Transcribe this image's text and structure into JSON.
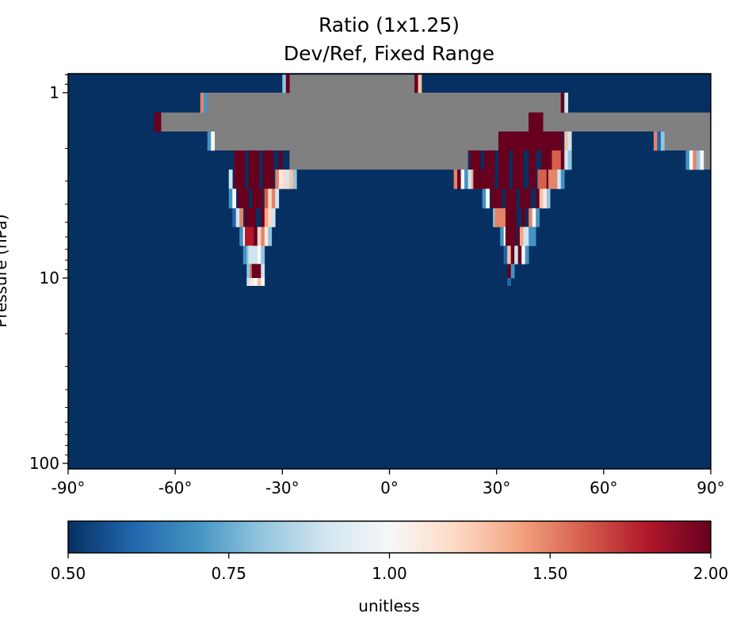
{
  "chart_data": {
    "type": "heatmap",
    "title": "Ratio (1x1.25)",
    "subtitle": "Dev/Ref, Fixed Range",
    "xlabel": "",
    "ylabel": "Pressure (hPa)",
    "x_range": [
      -90,
      90
    ],
    "y_range": [
      0.8,
      100
    ],
    "y_scale": "log",
    "y_inverted": true,
    "x_ticks": [
      {
        "value": -90,
        "label": "-90°"
      },
      {
        "value": -60,
        "label": "-60°"
      },
      {
        "value": -30,
        "label": "-30°"
      },
      {
        "value": 0,
        "label": "0°"
      },
      {
        "value": 30,
        "label": "30°"
      },
      {
        "value": 60,
        "label": "60°"
      },
      {
        "value": 90,
        "label": "90°"
      }
    ],
    "y_ticks": [
      {
        "value": 1,
        "label": "1"
      },
      {
        "value": 10,
        "label": "10"
      },
      {
        "value": 100,
        "label": "100"
      }
    ],
    "background_value": 0.5,
    "nan_color": "#808080",
    "nan_regions": [
      {
        "p_top": 0.8,
        "p_bot": 1.0,
        "lat_from": -28,
        "lat_to": 7
      },
      {
        "p_top": 1.0,
        "p_bot": 1.28,
        "lat_from": -51,
        "lat_to": 48
      },
      {
        "p_top": 1.28,
        "p_bot": 1.62,
        "lat_from": -64,
        "lat_to": 39
      },
      {
        "p_top": 1.28,
        "p_bot": 1.62,
        "lat_from": 43,
        "lat_to": 90
      },
      {
        "p_top": 1.62,
        "p_bot": 2.05,
        "lat_from": -49,
        "lat_to": 31
      },
      {
        "p_top": 1.62,
        "p_bot": 2.05,
        "lat_from": 77,
        "lat_to": 90
      },
      {
        "p_top": 2.05,
        "p_bot": 2.6,
        "lat_from": -28,
        "lat_to": 22
      },
      {
        "p_top": 2.05,
        "p_bot": 2.6,
        "lat_from": 88,
        "lat_to": 90
      }
    ],
    "value_cells": [
      {
        "p_top": 0.8,
        "p_bot": 1.0,
        "lat": -29.5,
        "value": 0.8
      },
      {
        "p_top": 0.8,
        "p_bot": 1.0,
        "lat": -28.5,
        "value": 2.0
      },
      {
        "p_top": 0.8,
        "p_bot": 1.0,
        "lat": 7.5,
        "value": 2.0
      },
      {
        "p_top": 0.8,
        "p_bot": 1.0,
        "lat": 8.5,
        "value": 1.3
      },
      {
        "p_top": 1.0,
        "p_bot": 1.28,
        "lat": -52.5,
        "value": 1.5
      },
      {
        "p_top": 1.0,
        "p_bot": 1.28,
        "lat": -51.5,
        "value": 0.7
      },
      {
        "p_top": 1.0,
        "p_bot": 1.28,
        "lat": 48.5,
        "value": 2.0
      },
      {
        "p_top": 1.0,
        "p_bot": 1.28,
        "lat": 49.5,
        "value": 0.9
      },
      {
        "p_top": 1.28,
        "p_bot": 1.62,
        "lat": -65,
        "value": 2.0
      },
      {
        "p_top": 1.28,
        "p_bot": 1.62,
        "lat": 40,
        "value": 2.0
      },
      {
        "p_top": 1.28,
        "p_bot": 1.62,
        "lat": 42,
        "value": 2.0
      },
      {
        "p_top": 1.62,
        "p_bot": 2.05,
        "lat": -50.5,
        "value": 0.7
      },
      {
        "p_top": 1.62,
        "p_bot": 2.05,
        "lat": -49.5,
        "value": 1.0
      },
      {
        "p_top": 1.62,
        "p_bot": 2.05,
        "lat": 32,
        "value": 2.0
      },
      {
        "p_top": 1.62,
        "p_bot": 2.05,
        "lat": 35,
        "value": 2.0
      },
      {
        "p_top": 1.62,
        "p_bot": 2.05,
        "lat": 38,
        "value": 2.0
      },
      {
        "p_top": 1.62,
        "p_bot": 2.05,
        "lat": 41,
        "value": 2.0
      },
      {
        "p_top": 1.62,
        "p_bot": 2.05,
        "lat": 44,
        "value": 2.0
      },
      {
        "p_top": 1.62,
        "p_bot": 2.05,
        "lat": 47,
        "value": 2.0
      },
      {
        "p_top": 1.62,
        "p_bot": 2.05,
        "lat": 49.5,
        "value": 1.3
      },
      {
        "p_top": 1.62,
        "p_bot": 2.05,
        "lat": 50.5,
        "value": 0.9
      },
      {
        "p_top": 1.62,
        "p_bot": 2.05,
        "lat": 74.5,
        "value": 1.5
      },
      {
        "p_top": 1.62,
        "p_bot": 2.05,
        "lat": 75.5,
        "value": 0.6
      },
      {
        "p_top": 1.62,
        "p_bot": 2.05,
        "lat": 76.5,
        "value": 0.8
      },
      {
        "p_top": 2.05,
        "p_bot": 2.6,
        "lat": -42,
        "value": 2.0
      },
      {
        "p_top": 2.05,
        "p_bot": 2.6,
        "lat": -38,
        "value": 2.0
      },
      {
        "p_top": 2.05,
        "p_bot": 2.6,
        "lat": -34,
        "value": 2.0
      },
      {
        "p_top": 2.05,
        "p_bot": 2.6,
        "lat": -30.5,
        "value": 2.0
      },
      {
        "p_top": 2.05,
        "p_bot": 2.6,
        "lat": 24,
        "value": 2.0
      },
      {
        "p_top": 2.05,
        "p_bot": 2.6,
        "lat": 28,
        "value": 2.0
      },
      {
        "p_top": 2.05,
        "p_bot": 2.6,
        "lat": 32,
        "value": 2.0
      },
      {
        "p_top": 2.05,
        "p_bot": 2.6,
        "lat": 36,
        "value": 2.0
      },
      {
        "p_top": 2.05,
        "p_bot": 2.6,
        "lat": 40,
        "value": 2.0
      },
      {
        "p_top": 2.05,
        "p_bot": 2.6,
        "lat": 44,
        "value": 2.0
      },
      {
        "p_top": 2.05,
        "p_bot": 2.6,
        "lat": 47,
        "value": 1.6
      },
      {
        "p_top": 2.05,
        "p_bot": 2.6,
        "lat": 48.5,
        "value": 2.0
      },
      {
        "p_top": 2.05,
        "p_bot": 2.6,
        "lat": 49.5,
        "value": 0.9
      },
      {
        "p_top": 2.05,
        "p_bot": 2.6,
        "lat": 50.5,
        "value": 0.8
      },
      {
        "p_top": 2.05,
        "p_bot": 2.6,
        "lat": 83.5,
        "value": 0.7
      },
      {
        "p_top": 2.05,
        "p_bot": 2.6,
        "lat": 84.5,
        "value": 1.0
      },
      {
        "p_top": 2.05,
        "p_bot": 2.6,
        "lat": 85.5,
        "value": 1.5
      },
      {
        "p_top": 2.05,
        "p_bot": 2.6,
        "lat": 86.5,
        "value": 0.8
      },
      {
        "p_top": 2.05,
        "p_bot": 2.6,
        "lat": 87.5,
        "value": 1.0
      },
      {
        "p_top": 2.6,
        "p_bot": 3.3,
        "lat": -44.5,
        "value": 0.9
      },
      {
        "p_top": 2.6,
        "p_bot": 3.3,
        "lat": -42,
        "value": 2.0
      },
      {
        "p_top": 2.6,
        "p_bot": 3.3,
        "lat": -38,
        "value": 2.0
      },
      {
        "p_top": 2.6,
        "p_bot": 3.3,
        "lat": -34,
        "value": 2.0
      },
      {
        "p_top": 2.6,
        "p_bot": 3.3,
        "lat": -31.5,
        "value": 1.5
      },
      {
        "p_top": 2.6,
        "p_bot": 3.3,
        "lat": -30.5,
        "value": 1.1
      },
      {
        "p_top": 2.6,
        "p_bot": 3.3,
        "lat": -29.5,
        "value": 1.2
      },
      {
        "p_top": 2.6,
        "p_bot": 3.3,
        "lat": -28.5,
        "value": 0.9
      },
      {
        "p_top": 2.6,
        "p_bot": 3.3,
        "lat": -27.5,
        "value": 1.3
      },
      {
        "p_top": 2.6,
        "p_bot": 3.3,
        "lat": -26.5,
        "value": 0.8
      },
      {
        "p_top": 2.6,
        "p_bot": 3.3,
        "lat": 18.5,
        "value": 1.5
      },
      {
        "p_top": 2.6,
        "p_bot": 3.3,
        "lat": 19.5,
        "value": 2.0
      },
      {
        "p_top": 2.6,
        "p_bot": 3.3,
        "lat": 20.5,
        "value": 1.0
      },
      {
        "p_top": 2.6,
        "p_bot": 3.3,
        "lat": 21.5,
        "value": 0.7
      },
      {
        "p_top": 2.6,
        "p_bot": 3.3,
        "lat": 22.5,
        "value": 0.9
      },
      {
        "p_top": 2.6,
        "p_bot": 3.3,
        "lat": 23.5,
        "value": 1.4
      },
      {
        "p_top": 2.6,
        "p_bot": 3.3,
        "lat": 25,
        "value": 2.0
      },
      {
        "p_top": 2.6,
        "p_bot": 3.3,
        "lat": 28,
        "value": 2.0
      },
      {
        "p_top": 2.6,
        "p_bot": 3.3,
        "lat": 32,
        "value": 2.0
      },
      {
        "p_top": 2.6,
        "p_bot": 3.3,
        "lat": 36,
        "value": 2.0
      },
      {
        "p_top": 2.6,
        "p_bot": 3.3,
        "lat": 40,
        "value": 2.0
      },
      {
        "p_top": 2.6,
        "p_bot": 3.3,
        "lat": 43,
        "value": 1.6
      },
      {
        "p_top": 2.6,
        "p_bot": 3.3,
        "lat": 44.5,
        "value": 2.0
      },
      {
        "p_top": 2.6,
        "p_bot": 3.3,
        "lat": 46,
        "value": 1.5
      },
      {
        "p_top": 2.6,
        "p_bot": 3.3,
        "lat": 47.5,
        "value": 0.9
      },
      {
        "p_top": 2.6,
        "p_bot": 3.3,
        "lat": 48.5,
        "value": 0.7
      },
      {
        "p_top": 3.3,
        "p_bot": 4.2,
        "lat": -44.5,
        "value": 0.7
      },
      {
        "p_top": 3.3,
        "p_bot": 4.2,
        "lat": -43.5,
        "value": 1.0
      },
      {
        "p_top": 3.3,
        "p_bot": 4.2,
        "lat": -41,
        "value": 2.0
      },
      {
        "p_top": 3.3,
        "p_bot": 4.2,
        "lat": -37,
        "value": 2.0
      },
      {
        "p_top": 3.3,
        "p_bot": 4.2,
        "lat": -34.5,
        "value": 1.6
      },
      {
        "p_top": 3.3,
        "p_bot": 4.2,
        "lat": -33.5,
        "value": 1.2
      },
      {
        "p_top": 3.3,
        "p_bot": 4.2,
        "lat": -32.5,
        "value": 1.5
      },
      {
        "p_top": 3.3,
        "p_bot": 4.2,
        "lat": -31.5,
        "value": 0.9
      },
      {
        "p_top": 3.3,
        "p_bot": 4.2,
        "lat": 26.5,
        "value": 0.7
      },
      {
        "p_top": 3.3,
        "p_bot": 4.2,
        "lat": 27.5,
        "value": 1.0
      },
      {
        "p_top": 3.3,
        "p_bot": 4.2,
        "lat": 30,
        "value": 2.0
      },
      {
        "p_top": 3.3,
        "p_bot": 4.2,
        "lat": 34,
        "value": 2.0
      },
      {
        "p_top": 3.3,
        "p_bot": 4.2,
        "lat": 38,
        "value": 2.0
      },
      {
        "p_top": 3.3,
        "p_bot": 4.2,
        "lat": 41.5,
        "value": 2.0
      },
      {
        "p_top": 3.3,
        "p_bot": 4.2,
        "lat": 42.5,
        "value": 1.3
      },
      {
        "p_top": 3.3,
        "p_bot": 4.2,
        "lat": 43.5,
        "value": 1.1
      },
      {
        "p_top": 3.3,
        "p_bot": 4.2,
        "lat": 44.5,
        "value": 0.8
      },
      {
        "p_top": 4.2,
        "p_bot": 5.3,
        "lat": -43.5,
        "value": 0.6
      },
      {
        "p_top": 4.2,
        "p_bot": 5.3,
        "lat": -42.5,
        "value": 0.9
      },
      {
        "p_top": 4.2,
        "p_bot": 5.3,
        "lat": -41.5,
        "value": 1.5
      },
      {
        "p_top": 4.2,
        "p_bot": 5.3,
        "lat": -39,
        "value": 2.0
      },
      {
        "p_top": 4.2,
        "p_bot": 5.3,
        "lat": -35.5,
        "value": 2.0
      },
      {
        "p_top": 4.2,
        "p_bot": 5.3,
        "lat": -34.5,
        "value": 1.4
      },
      {
        "p_top": 4.2,
        "p_bot": 5.3,
        "lat": -33.5,
        "value": 1.2
      },
      {
        "p_top": 4.2,
        "p_bot": 5.3,
        "lat": -32.5,
        "value": 0.9
      },
      {
        "p_top": 4.2,
        "p_bot": 5.3,
        "lat": 29.5,
        "value": 0.8
      },
      {
        "p_top": 4.2,
        "p_bot": 5.3,
        "lat": 31,
        "value": 1.5
      },
      {
        "p_top": 4.2,
        "p_bot": 5.3,
        "lat": 34,
        "value": 2.0
      },
      {
        "p_top": 4.2,
        "p_bot": 5.3,
        "lat": 37.5,
        "value": 2.0
      },
      {
        "p_top": 4.2,
        "p_bot": 5.3,
        "lat": 39.5,
        "value": 1.5
      },
      {
        "p_top": 4.2,
        "p_bot": 5.3,
        "lat": 40.5,
        "value": 1.0
      },
      {
        "p_top": 4.2,
        "p_bot": 5.3,
        "lat": 41.5,
        "value": 0.7
      },
      {
        "p_top": 5.3,
        "p_bot": 6.7,
        "lat": -41.5,
        "value": 0.7
      },
      {
        "p_top": 5.3,
        "p_bot": 6.7,
        "lat": -40.5,
        "value": 1.0
      },
      {
        "p_top": 5.3,
        "p_bot": 6.7,
        "lat": -39,
        "value": 1.8
      },
      {
        "p_top": 5.3,
        "p_bot": 6.7,
        "lat": -37.5,
        "value": 2.0
      },
      {
        "p_top": 5.3,
        "p_bot": 6.7,
        "lat": -36.5,
        "value": 1.2
      },
      {
        "p_top": 5.3,
        "p_bot": 6.7,
        "lat": -35.5,
        "value": 1.5
      },
      {
        "p_top": 5.3,
        "p_bot": 6.7,
        "lat": -34.5,
        "value": 1.1
      },
      {
        "p_top": 5.3,
        "p_bot": 6.7,
        "lat": -33.5,
        "value": 0.8
      },
      {
        "p_top": 5.3,
        "p_bot": 6.7,
        "lat": 31.5,
        "value": 0.7
      },
      {
        "p_top": 5.3,
        "p_bot": 6.7,
        "lat": 32.5,
        "value": 1.0
      },
      {
        "p_top": 5.3,
        "p_bot": 6.7,
        "lat": 34,
        "value": 2.0
      },
      {
        "p_top": 5.3,
        "p_bot": 6.7,
        "lat": 36.5,
        "value": 2.0
      },
      {
        "p_top": 5.3,
        "p_bot": 6.7,
        "lat": 38,
        "value": 1.4
      },
      {
        "p_top": 5.3,
        "p_bot": 6.7,
        "lat": 39,
        "value": 0.9
      },
      {
        "p_top": 5.3,
        "p_bot": 6.7,
        "lat": 40,
        "value": 0.7
      },
      {
        "p_top": 6.7,
        "p_bot": 8.4,
        "lat": -40.5,
        "value": 0.7
      },
      {
        "p_top": 6.7,
        "p_bot": 8.4,
        "lat": -39.5,
        "value": 0.8
      },
      {
        "p_top": 6.7,
        "p_bot": 8.4,
        "lat": -38,
        "value": 0.9
      },
      {
        "p_top": 6.7,
        "p_bot": 8.4,
        "lat": -36.5,
        "value": 1.0
      },
      {
        "p_top": 6.7,
        "p_bot": 8.4,
        "lat": -35.5,
        "value": 0.8
      },
      {
        "p_top": 6.7,
        "p_bot": 8.4,
        "lat": 32.5,
        "value": 0.6
      },
      {
        "p_top": 6.7,
        "p_bot": 8.4,
        "lat": 33.5,
        "value": 1.3
      },
      {
        "p_top": 6.7,
        "p_bot": 8.4,
        "lat": 34.5,
        "value": 2.0
      },
      {
        "p_top": 6.7,
        "p_bot": 8.4,
        "lat": 35.5,
        "value": 0.9
      },
      {
        "p_top": 6.7,
        "p_bot": 8.4,
        "lat": 36.5,
        "value": 2.0
      },
      {
        "p_top": 6.7,
        "p_bot": 8.4,
        "lat": 37.5,
        "value": 1.0
      },
      {
        "p_top": 6.7,
        "p_bot": 8.4,
        "lat": 38.5,
        "value": 0.7
      },
      {
        "p_top": 8.4,
        "p_bot": 10.0,
        "lat": -39.5,
        "value": 0.8
      },
      {
        "p_top": 8.4,
        "p_bot": 10.0,
        "lat": -38.5,
        "value": 1.6
      },
      {
        "p_top": 8.4,
        "p_bot": 10.0,
        "lat": -37,
        "value": 2.0
      },
      {
        "p_top": 8.4,
        "p_bot": 10.0,
        "lat": -35.5,
        "value": 0.9
      },
      {
        "p_top": 8.4,
        "p_bot": 10.0,
        "lat": 33.5,
        "value": 2.0
      },
      {
        "p_top": 8.4,
        "p_bot": 10.0,
        "lat": 34.5,
        "value": 0.7
      },
      {
        "p_top": 10.0,
        "p_bot": 11.0,
        "lat": -39.5,
        "value": 0.9
      },
      {
        "p_top": 10.0,
        "p_bot": 11.0,
        "lat": -38.5,
        "value": 1.1
      },
      {
        "p_top": 10.0,
        "p_bot": 11.0,
        "lat": -37.5,
        "value": 1.0
      },
      {
        "p_top": 10.0,
        "p_bot": 11.0,
        "lat": -36.5,
        "value": 1.3
      },
      {
        "p_top": 10.0,
        "p_bot": 11.0,
        "lat": -35.5,
        "value": 1.0
      },
      {
        "p_top": 10.0,
        "p_bot": 11.0,
        "lat": 33.5,
        "value": 0.6
      }
    ],
    "grid": false
  },
  "colorbar": {
    "min": 0.5,
    "max": 2.0,
    "ticks": [
      {
        "value": 0.5,
        "label": "0.50"
      },
      {
        "value": 0.75,
        "label": "0.75"
      },
      {
        "value": 1.0,
        "label": "1.00"
      },
      {
        "value": 1.5,
        "label": "1.50"
      },
      {
        "value": 2.0,
        "label": "2.00"
      }
    ],
    "label": "unitless",
    "colormap": "RdBu_r",
    "stops": [
      "#053061",
      "#2166ac",
      "#4393c3",
      "#92c5de",
      "#d1e5f0",
      "#f7f7f7",
      "#fddbc7",
      "#f4a582",
      "#d6604d",
      "#b2182b",
      "#67001f"
    ]
  }
}
